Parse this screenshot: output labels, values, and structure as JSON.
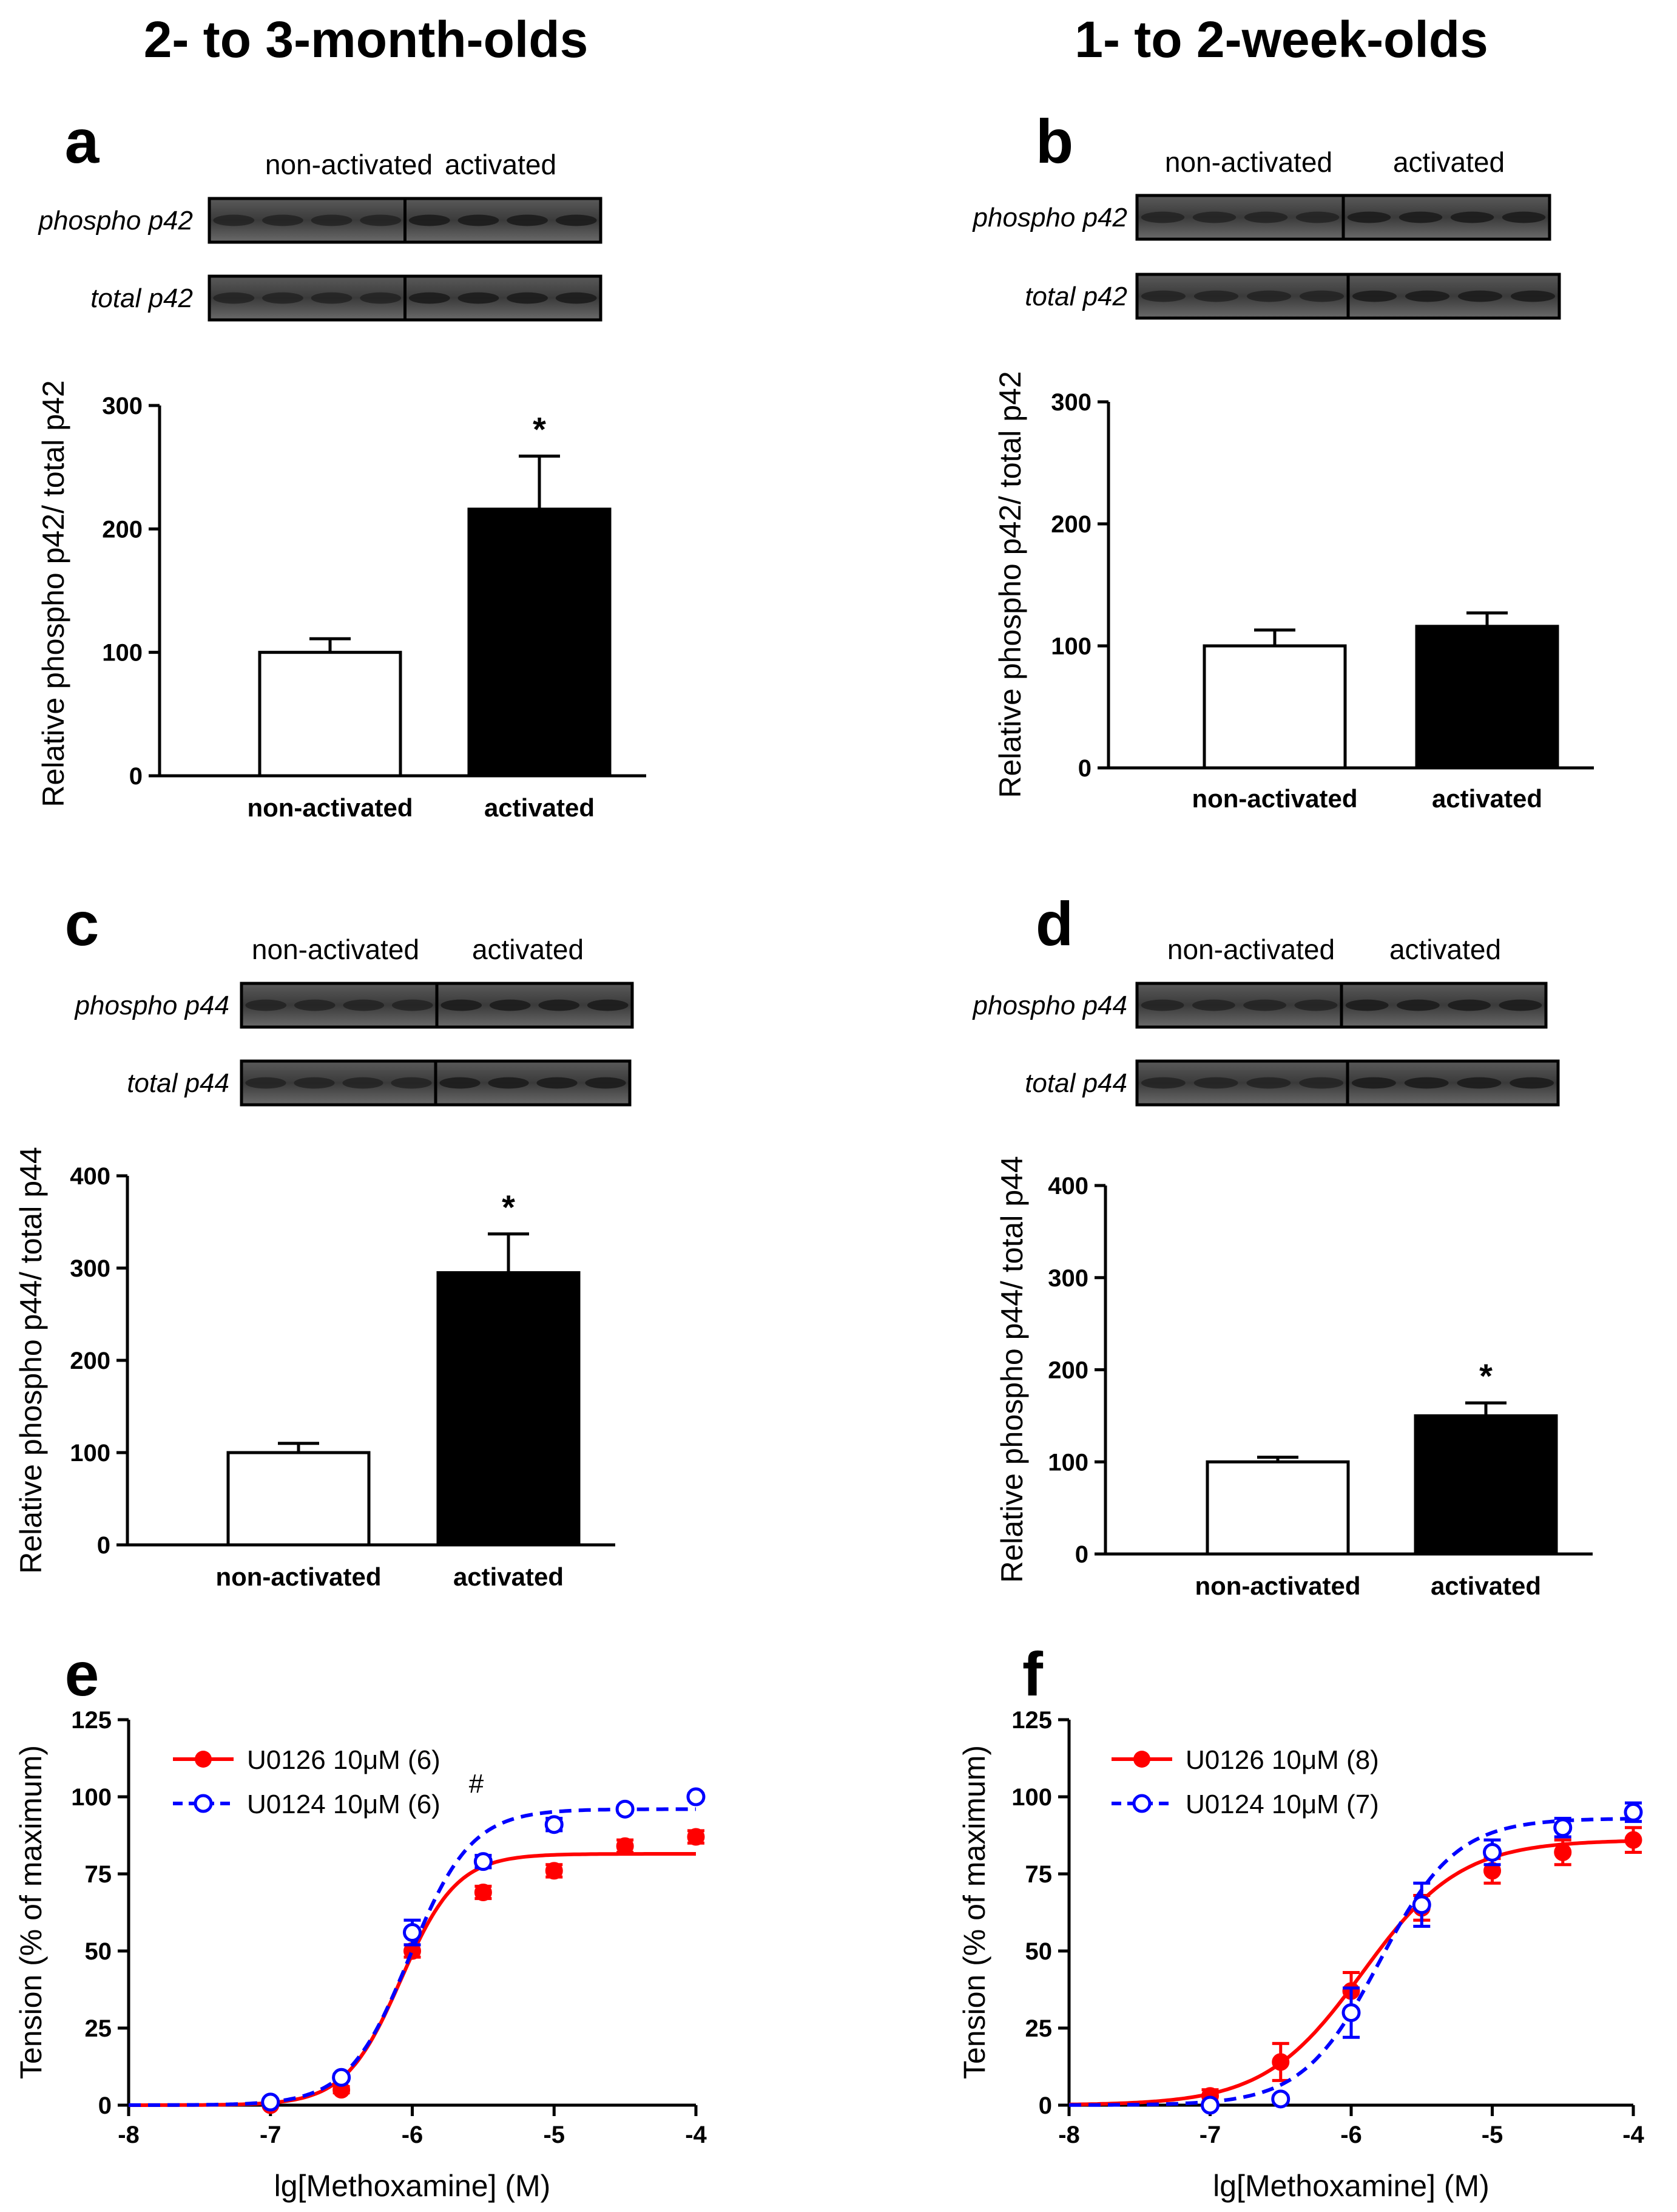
{
  "column_titles": [
    "2- to 3-month-olds",
    "1- to 2-week-olds"
  ],
  "chart_data": [
    {
      "panel": "a",
      "type": "bar",
      "blot_headers": [
        "non-activated",
        "activated"
      ],
      "blot_rows": [
        "phospho p42",
        "total p42"
      ],
      "categories": [
        "non-activated",
        "activated"
      ],
      "values": [
        100,
        216
      ],
      "errors": [
        11,
        43
      ],
      "significance": [
        "",
        "*"
      ],
      "ylabel": "Relative phospho p42/ total p42",
      "ylim": [
        0,
        300
      ],
      "yticks": [
        0,
        100,
        200,
        300
      ],
      "bar_colors": [
        "#ffffff",
        "#000000"
      ]
    },
    {
      "panel": "b",
      "type": "bar",
      "blot_headers": [
        "non-activated",
        "activated"
      ],
      "blot_rows": [
        "phospho p42",
        "total p42"
      ],
      "categories": [
        "non-activated",
        "activated"
      ],
      "values": [
        100,
        116
      ],
      "errors": [
        13,
        11
      ],
      "significance": [
        "",
        ""
      ],
      "ylabel": "Relative phospho p42/ total p42",
      "ylim": [
        0,
        300
      ],
      "yticks": [
        0,
        100,
        200,
        300
      ],
      "bar_colors": [
        "#ffffff",
        "#000000"
      ]
    },
    {
      "panel": "c",
      "type": "bar",
      "blot_headers": [
        "non-activated",
        "activated"
      ],
      "blot_rows": [
        "phospho p44",
        "total p44"
      ],
      "categories": [
        "non-activated",
        "activated"
      ],
      "values": [
        100,
        295
      ],
      "errors": [
        10,
        42
      ],
      "significance": [
        "",
        "*"
      ],
      "ylabel": "Relative phospho p44/ total p44",
      "ylim": [
        0,
        400
      ],
      "yticks": [
        0,
        100,
        200,
        300,
        400
      ],
      "bar_colors": [
        "#ffffff",
        "#000000"
      ]
    },
    {
      "panel": "d",
      "type": "bar",
      "blot_headers": [
        "non-activated",
        "activated"
      ],
      "blot_rows": [
        "phospho p44",
        "total p44"
      ],
      "categories": [
        "non-activated",
        "activated"
      ],
      "values": [
        100,
        150
      ],
      "errors": [
        5,
        14
      ],
      "significance": [
        "",
        "*"
      ],
      "ylabel": "Relative phospho p44/ total p44",
      "ylim": [
        0,
        400
      ],
      "yticks": [
        0,
        100,
        200,
        300,
        400
      ],
      "bar_colors": [
        "#ffffff",
        "#000000"
      ]
    },
    {
      "panel": "e",
      "type": "line",
      "xlabel": "lg[Methoxamine] (M)",
      "ylabel": "Tension (% of maximum)",
      "xlim": [
        -8,
        -4
      ],
      "ylim": [
        0,
        125
      ],
      "xticks": [
        -8,
        -7,
        -6,
        -5,
        -4
      ],
      "yticks": [
        0,
        25,
        50,
        75,
        100,
        125
      ],
      "annotation": "#",
      "series": [
        {
          "name": "U0126 10μM (6)",
          "color": "#ff0000",
          "marker": "filled-circle",
          "line": "solid",
          "x": [
            -7,
            -6.5,
            -6,
            -5.5,
            -5,
            -4.5,
            -4
          ],
          "y": [
            0,
            5,
            50,
            69,
            76,
            84,
            87
          ],
          "err": [
            0,
            1,
            2,
            2,
            2,
            2,
            2
          ],
          "fit": {
            "bottom": 0,
            "top": 81.5,
            "logEC50": -6.08,
            "hill": 2.2
          }
        },
        {
          "name": "U0124 10μM (6)",
          "color": "#0000ff",
          "marker": "open-circle",
          "line": "dashed",
          "x": [
            -7,
            -6.5,
            -6,
            -5.5,
            -5,
            -4.5,
            -4
          ],
          "y": [
            1,
            9,
            56,
            79,
            91,
            96,
            100
          ],
          "err": [
            0,
            1,
            4,
            2,
            2,
            1,
            1
          ],
          "fit": {
            "bottom": 0,
            "top": 96,
            "logEC50": -6.02,
            "hill": 2.0
          }
        }
      ]
    },
    {
      "panel": "f",
      "type": "line",
      "xlabel": "lg[Methoxamine] (M)",
      "ylabel": "Tension (% of maximum)",
      "xlim": [
        -8,
        -4
      ],
      "ylim": [
        0,
        125
      ],
      "xticks": [
        -8,
        -7,
        -6,
        -5,
        -4
      ],
      "yticks": [
        0,
        25,
        50,
        75,
        100,
        125
      ],
      "annotation": "",
      "series": [
        {
          "name": "U0126 10μM (8)",
          "color": "#ff0000",
          "marker": "filled-circle",
          "line": "solid",
          "x": [
            -7,
            -6.5,
            -6,
            -5.5,
            -5,
            -4.5,
            -4
          ],
          "y": [
            3,
            14,
            37,
            64,
            76,
            82,
            86
          ],
          "err": [
            2,
            6,
            6,
            4,
            4,
            4,
            4
          ],
          "fit": {
            "bottom": 0,
            "top": 86,
            "logEC50": -5.92,
            "hill": 1.25
          }
        },
        {
          "name": "U0124 10μM (7)",
          "color": "#0000ff",
          "marker": "open-circle",
          "line": "dashed",
          "x": [
            -7,
            -6.5,
            -6,
            -5.5,
            -5,
            -4.5,
            -4
          ],
          "y": [
            0,
            2,
            30,
            65,
            82,
            90,
            95
          ],
          "err": [
            0,
            1,
            8,
            7,
            4,
            3,
            3
          ],
          "fit": {
            "bottom": 0,
            "top": 93,
            "logEC50": -5.8,
            "hill": 1.6
          }
        }
      ]
    }
  ]
}
